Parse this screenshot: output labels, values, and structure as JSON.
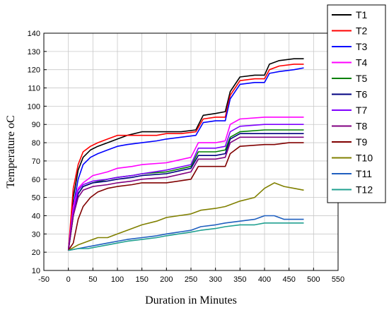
{
  "chart_data": {
    "type": "line",
    "title": "",
    "xlabel": "Duration in Minutes",
    "ylabel": "Temperature",
    "ylabel_unit": "oC",
    "xlim": [
      -50,
      550
    ],
    "ylim": [
      10,
      140
    ],
    "xticks": [
      -50,
      0,
      50,
      100,
      150,
      200,
      250,
      300,
      350,
      400,
      450,
      500,
      550
    ],
    "yticks": [
      10,
      20,
      30,
      40,
      50,
      60,
      70,
      80,
      90,
      100,
      110,
      120,
      130,
      140
    ],
    "grid": true,
    "legend_position": "right",
    "series": [
      {
        "name": "T1",
        "color": "#000000",
        "x": [
          0,
          10,
          20,
          30,
          45,
          60,
          80,
          100,
          120,
          150,
          180,
          200,
          230,
          260,
          275,
          300,
          320,
          330,
          350,
          380,
          400,
          410,
          430,
          460,
          480
        ],
        "y": [
          21,
          50,
          65,
          72,
          76,
          78,
          80,
          82,
          84,
          86,
          86,
          86,
          86,
          87,
          95,
          96,
          97,
          108,
          116,
          117,
          117,
          123,
          125,
          126,
          126
        ]
      },
      {
        "name": "T2",
        "color": "#ff0000",
        "x": [
          0,
          10,
          20,
          30,
          45,
          60,
          80,
          100,
          120,
          150,
          180,
          200,
          230,
          260,
          275,
          300,
          320,
          330,
          350,
          380,
          400,
          410,
          430,
          460,
          480
        ],
        "y": [
          21,
          55,
          68,
          75,
          78,
          80,
          82,
          84,
          84,
          84,
          84,
          85,
          85,
          86,
          93,
          94,
          94,
          106,
          114,
          115,
          115,
          120,
          122,
          123,
          123
        ]
      },
      {
        "name": "T3",
        "color": "#0000ff",
        "x": [
          0,
          10,
          20,
          30,
          45,
          60,
          80,
          100,
          120,
          150,
          180,
          200,
          230,
          260,
          275,
          300,
          320,
          330,
          350,
          380,
          400,
          410,
          430,
          460,
          480
        ],
        "y": [
          21,
          45,
          60,
          68,
          72,
          74,
          76,
          78,
          79,
          80,
          81,
          82,
          83,
          84,
          91,
          92,
          92,
          104,
          112,
          113,
          113,
          118,
          119,
          120,
          121
        ]
      },
      {
        "name": "T4",
        "color": "#ff00ff",
        "x": [
          0,
          10,
          20,
          30,
          50,
          80,
          100,
          130,
          150,
          200,
          250,
          265,
          300,
          320,
          330,
          350,
          400,
          420,
          450,
          480
        ],
        "y": [
          21,
          45,
          55,
          58,
          62,
          64,
          66,
          67,
          68,
          69,
          72,
          80,
          80,
          81,
          90,
          93,
          94,
          94,
          94,
          94
        ]
      },
      {
        "name": "T5",
        "color": "#008000",
        "x": [
          0,
          10,
          20,
          30,
          50,
          80,
          100,
          130,
          150,
          200,
          250,
          265,
          300,
          320,
          330,
          350,
          400,
          420,
          450,
          480
        ],
        "y": [
          21,
          40,
          52,
          56,
          58,
          60,
          61,
          62,
          63,
          64,
          67,
          75,
          75,
          76,
          83,
          86,
          87,
          87,
          87,
          87
        ]
      },
      {
        "name": "T6",
        "color": "#000080",
        "x": [
          0,
          10,
          20,
          30,
          50,
          80,
          100,
          130,
          150,
          200,
          250,
          265,
          300,
          320,
          330,
          350,
          400,
          420,
          450,
          480
        ],
        "y": [
          21,
          40,
          52,
          56,
          58,
          59,
          60,
          61,
          62,
          63,
          66,
          73,
          73,
          74,
          82,
          85,
          85,
          85,
          85,
          85
        ]
      },
      {
        "name": "T7",
        "color": "#8000ff",
        "x": [
          0,
          10,
          20,
          30,
          50,
          80,
          100,
          130,
          150,
          200,
          250,
          265,
          300,
          320,
          330,
          350,
          400,
          420,
          450,
          480
        ],
        "y": [
          21,
          42,
          54,
          57,
          59,
          60,
          61,
          62,
          63,
          65,
          68,
          77,
          77,
          78,
          86,
          89,
          90,
          90,
          90,
          90
        ]
      },
      {
        "name": "T8",
        "color": "#800080",
        "x": [
          0,
          10,
          20,
          30,
          50,
          80,
          100,
          130,
          150,
          200,
          250,
          265,
          300,
          320,
          330,
          350,
          400,
          420,
          450,
          480
        ],
        "y": [
          21,
          40,
          50,
          54,
          56,
          57,
          58,
          59,
          60,
          61,
          64,
          71,
          71,
          72,
          80,
          83,
          83,
          83,
          83,
          83
        ]
      },
      {
        "name": "T9",
        "color": "#800000",
        "x": [
          0,
          10,
          20,
          30,
          45,
          60,
          80,
          100,
          130,
          150,
          200,
          250,
          265,
          300,
          320,
          330,
          350,
          400,
          420,
          450,
          480
        ],
        "y": [
          21,
          25,
          38,
          45,
          50,
          53,
          55,
          56,
          57,
          58,
          58,
          60,
          67,
          67,
          67,
          74,
          78,
          79,
          79,
          80,
          80
        ]
      },
      {
        "name": "T10",
        "color": "#808000",
        "x": [
          0,
          20,
          40,
          60,
          80,
          100,
          120,
          150,
          180,
          200,
          250,
          270,
          300,
          320,
          350,
          380,
          400,
          420,
          440,
          460,
          480
        ],
        "y": [
          21,
          24,
          26,
          28,
          28,
          30,
          32,
          35,
          37,
          39,
          41,
          43,
          44,
          45,
          48,
          50,
          55,
          58,
          56,
          55,
          54
        ]
      },
      {
        "name": "T11",
        "color": "#1f5fbf",
        "x": [
          0,
          20,
          40,
          60,
          80,
          100,
          120,
          150,
          180,
          200,
          250,
          270,
          300,
          320,
          350,
          380,
          400,
          420,
          440,
          460,
          480
        ],
        "y": [
          21,
          22,
          23,
          24,
          25,
          26,
          27,
          28,
          29,
          30,
          32,
          34,
          35,
          36,
          37,
          38,
          40,
          40,
          38,
          38,
          38
        ]
      },
      {
        "name": "T12",
        "color": "#20a090",
        "x": [
          0,
          20,
          40,
          60,
          80,
          100,
          120,
          150,
          180,
          200,
          250,
          270,
          300,
          320,
          350,
          380,
          400,
          420,
          440,
          460,
          480
        ],
        "y": [
          21,
          22,
          22,
          23,
          24,
          25,
          26,
          27,
          28,
          29,
          31,
          32,
          33,
          34,
          35,
          35,
          36,
          36,
          36,
          36,
          36
        ]
      }
    ]
  }
}
